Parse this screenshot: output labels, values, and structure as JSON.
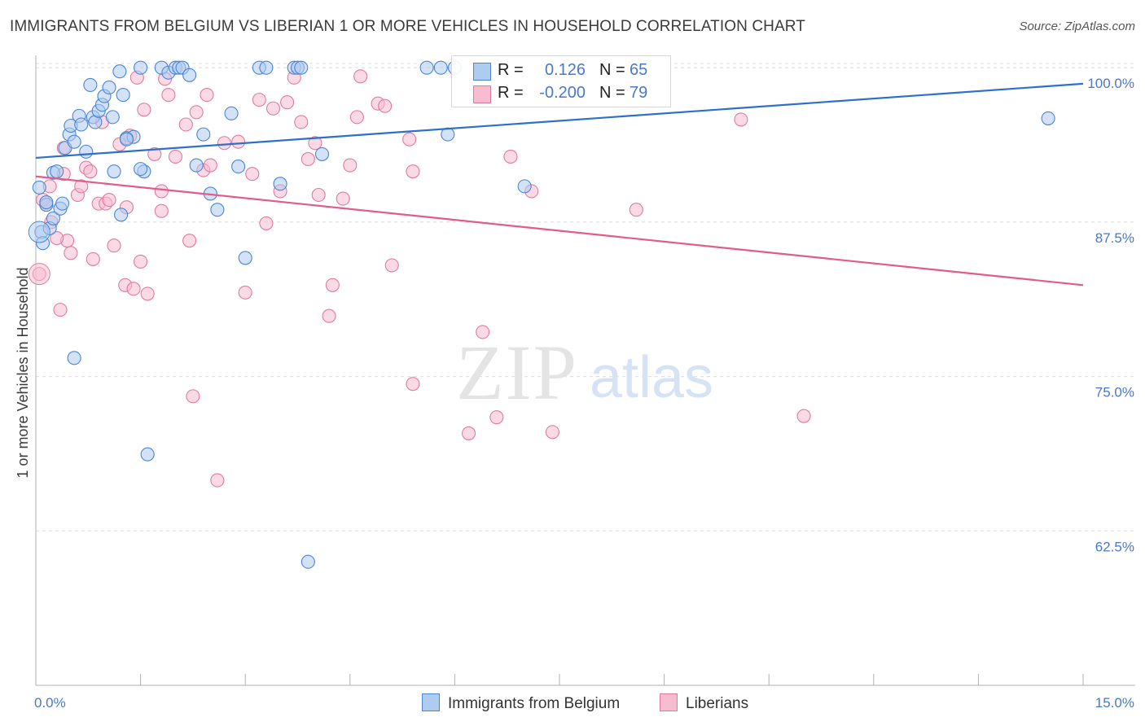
{
  "title": "IMMIGRANTS FROM BELGIUM VS LIBERIAN 1 OR MORE VEHICLES IN HOUSEHOLD CORRELATION CHART",
  "source": "Source: ZipAtlas.com",
  "watermark": {
    "zip": "ZIP",
    "atlas": "atlas"
  },
  "legend_top": {
    "series1": {
      "r_label": "R =",
      "r_value": "0.126",
      "n_label": "N =",
      "n_value": "65"
    },
    "series2": {
      "r_label": "R =",
      "r_value": "-0.200",
      "n_label": "N =",
      "n_value": "79"
    }
  },
  "legend_bottom": {
    "series1": "Immigrants from Belgium",
    "series2": "Liberians"
  },
  "colors": {
    "blue_fill": "#aecbf0",
    "blue_stroke": "#4a86d4",
    "blue_line": "#2e6fcc",
    "pink_fill": "#f7bcd0",
    "pink_stroke": "#e07aa0",
    "pink_line": "#e05c8c",
    "tick_text": "#4a78c8",
    "grid": "#dcdcdc"
  },
  "chart_data": {
    "type": "scatter",
    "title": "IMMIGRANTS FROM BELGIUM VS LIBERIAN 1 OR MORE VEHICLES IN HOUSEHOLD CORRELATION CHART",
    "xlabel": "",
    "ylabel": "1 or more Vehicles in Household",
    "xlim": [
      0,
      15
    ],
    "ylim": [
      50.0,
      101.0
    ],
    "x_tick_labels": [
      "0.0%",
      "15.0%"
    ],
    "y_ticks": [
      100.0,
      87.5,
      75.0,
      62.5
    ],
    "y_tick_labels": [
      "100.0%",
      "87.5%",
      "75.0%",
      "62.5%"
    ],
    "series": [
      {
        "name": "Immigrants from Belgium",
        "R": 0.126,
        "N": 65,
        "trend": {
          "x": [
            0.0,
            15.0
          ],
          "y": [
            92.7,
            98.7
          ]
        },
        "points": [
          [
            0.05,
            90.3
          ],
          [
            0.08,
            86.7
          ],
          [
            0.1,
            85.8
          ],
          [
            0.15,
            88.9
          ],
          [
            0.2,
            87.0
          ],
          [
            0.25,
            87.8
          ],
          [
            0.25,
            91.5
          ],
          [
            0.3,
            91.6
          ],
          [
            0.35,
            88.6
          ],
          [
            0.38,
            89.0
          ],
          [
            0.42,
            93.5
          ],
          [
            0.48,
            94.6
          ],
          [
            0.5,
            95.3
          ],
          [
            0.55,
            94.0
          ],
          [
            0.62,
            96.1
          ],
          [
            0.65,
            95.4
          ],
          [
            0.72,
            93.2
          ],
          [
            0.78,
            98.6
          ],
          [
            0.82,
            96.0
          ],
          [
            0.85,
            95.6
          ],
          [
            0.9,
            96.5
          ],
          [
            0.95,
            97.0
          ],
          [
            0.98,
            97.7
          ],
          [
            1.05,
            98.4
          ],
          [
            1.1,
            96.0
          ],
          [
            1.2,
            99.7
          ],
          [
            1.25,
            97.8
          ],
          [
            1.3,
            94.3
          ],
          [
            1.4,
            94.4
          ],
          [
            1.5,
            100.0
          ],
          [
            1.55,
            91.6
          ],
          [
            1.8,
            100.0
          ],
          [
            1.9,
            99.6
          ],
          [
            2.0,
            100.0
          ],
          [
            2.05,
            100.0
          ],
          [
            2.1,
            100.0
          ],
          [
            2.2,
            99.4
          ],
          [
            2.3,
            92.1
          ],
          [
            2.4,
            94.6
          ],
          [
            2.5,
            89.8
          ],
          [
            2.6,
            88.5
          ],
          [
            2.8,
            96.3
          ],
          [
            2.9,
            92.0
          ],
          [
            3.0,
            84.6
          ],
          [
            3.2,
            100.0
          ],
          [
            3.3,
            100.0
          ],
          [
            3.5,
            90.6
          ],
          [
            3.7,
            100.0
          ],
          [
            3.75,
            100.0
          ],
          [
            3.8,
            100.0
          ],
          [
            3.9,
            60.0
          ],
          [
            4.1,
            93.0
          ],
          [
            5.6,
            100.0
          ],
          [
            5.8,
            100.0
          ],
          [
            5.9,
            94.6
          ],
          [
            6.0,
            100.0
          ],
          [
            7.0,
            90.4
          ],
          [
            1.5,
            91.8
          ],
          [
            1.6,
            68.7
          ],
          [
            1.12,
            91.6
          ],
          [
            1.22,
            88.1
          ],
          [
            0.55,
            76.5
          ],
          [
            0.15,
            89.1
          ],
          [
            14.5,
            95.9
          ],
          [
            1.3,
            94.2
          ]
        ]
      },
      {
        "name": "Liberians",
        "R": -0.2,
        "N": 79,
        "trend": {
          "x": [
            0.0,
            15.0
          ],
          "y": [
            91.2,
            82.4
          ]
        },
        "points": [
          [
            0.05,
            83.3
          ],
          [
            0.1,
            89.3
          ],
          [
            0.15,
            88.9
          ],
          [
            0.2,
            90.4
          ],
          [
            0.22,
            87.5
          ],
          [
            0.35,
            80.4
          ],
          [
            0.4,
            91.4
          ],
          [
            0.45,
            86.0
          ],
          [
            0.5,
            85.0
          ],
          [
            0.6,
            89.7
          ],
          [
            0.65,
            90.4
          ],
          [
            0.72,
            91.9
          ],
          [
            0.78,
            91.6
          ],
          [
            0.82,
            84.5
          ],
          [
            0.9,
            89.0
          ],
          [
            0.95,
            95.6
          ],
          [
            1.0,
            89.0
          ],
          [
            1.05,
            89.3
          ],
          [
            1.12,
            85.6
          ],
          [
            1.2,
            93.8
          ],
          [
            1.28,
            82.4
          ],
          [
            1.35,
            94.5
          ],
          [
            1.4,
            82.1
          ],
          [
            1.45,
            99.2
          ],
          [
            1.5,
            84.3
          ],
          [
            1.55,
            96.6
          ],
          [
            1.6,
            81.7
          ],
          [
            1.7,
            93.0
          ],
          [
            1.8,
            88.4
          ],
          [
            1.85,
            99.1
          ],
          [
            1.9,
            97.8
          ],
          [
            2.0,
            92.8
          ],
          [
            2.15,
            95.4
          ],
          [
            2.25,
            73.4
          ],
          [
            2.3,
            96.4
          ],
          [
            2.4,
            91.7
          ],
          [
            2.45,
            97.8
          ],
          [
            2.5,
            92.1
          ],
          [
            2.6,
            66.6
          ],
          [
            2.7,
            93.9
          ],
          [
            2.9,
            94.0
          ],
          [
            3.0,
            81.8
          ],
          [
            3.1,
            91.4
          ],
          [
            3.2,
            97.4
          ],
          [
            3.3,
            87.4
          ],
          [
            3.4,
            96.7
          ],
          [
            3.5,
            90.0
          ],
          [
            3.6,
            97.2
          ],
          [
            3.7,
            99.2
          ],
          [
            3.8,
            95.6
          ],
          [
            3.9,
            92.6
          ],
          [
            4.0,
            93.9
          ],
          [
            4.05,
            89.7
          ],
          [
            4.2,
            79.9
          ],
          [
            4.25,
            82.4
          ],
          [
            4.4,
            89.4
          ],
          [
            4.5,
            92.1
          ],
          [
            4.6,
            96.0
          ],
          [
            4.65,
            99.3
          ],
          [
            4.9,
            97.1
          ],
          [
            5.0,
            96.9
          ],
          [
            5.1,
            84.0
          ],
          [
            5.35,
            94.2
          ],
          [
            5.4,
            74.4
          ],
          [
            5.4,
            91.6
          ],
          [
            6.2,
            70.4
          ],
          [
            6.4,
            78.6
          ],
          [
            6.6,
            71.7
          ],
          [
            6.8,
            92.8
          ],
          [
            7.1,
            90.0
          ],
          [
            7.4,
            70.5
          ],
          [
            8.6,
            88.5
          ],
          [
            10.1,
            95.8
          ],
          [
            11.0,
            71.8
          ],
          [
            0.3,
            86.2
          ],
          [
            1.8,
            90.0
          ],
          [
            2.2,
            86.0
          ],
          [
            0.4,
            93.5
          ],
          [
            1.3,
            88.7
          ]
        ]
      }
    ]
  }
}
